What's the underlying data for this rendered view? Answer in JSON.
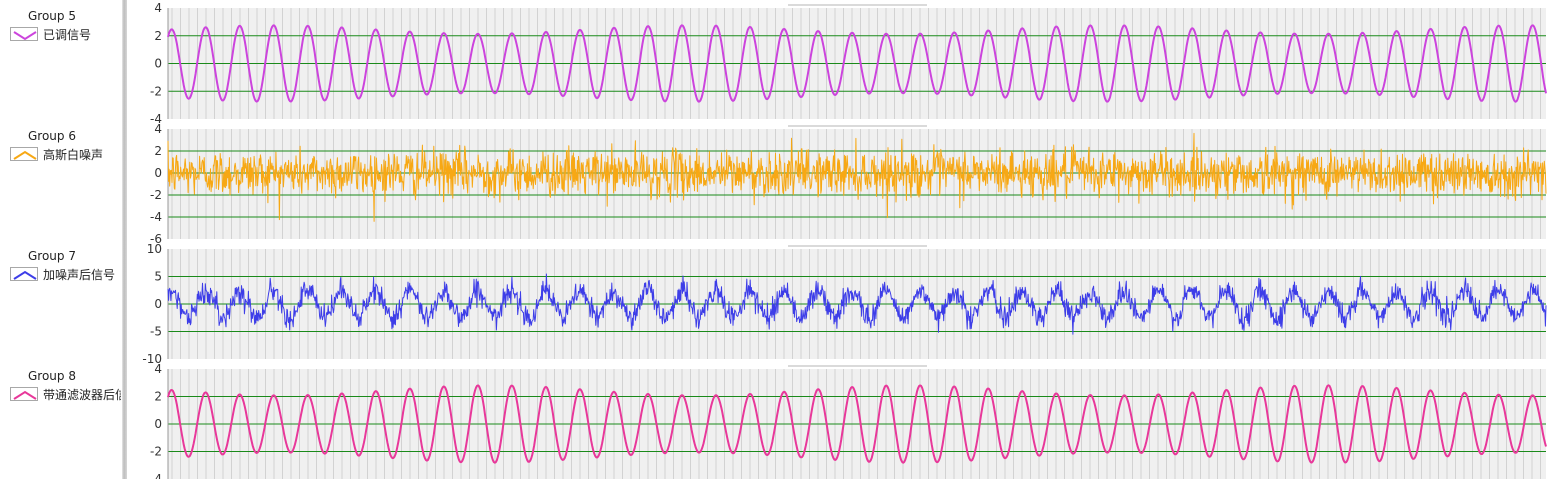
{
  "legend": {
    "groups": [
      {
        "title": "Group 5",
        "name": "已调信号"
      },
      {
        "title": "Group 6",
        "name": "高斯白噪声"
      },
      {
        "title": "Group 7",
        "name": "加噪声后信号"
      },
      {
        "title": "Group 8",
        "name": "带通滤波器后信号"
      }
    ]
  },
  "chart_data": [
    {
      "type": "line",
      "series": [
        {
          "name": "已调信号",
          "color": "#cc44dd"
        }
      ],
      "ylim": [
        -4,
        4
      ],
      "yticks": [
        "4",
        "2",
        "0",
        "-2",
        "-4"
      ],
      "ytick_values": [
        4,
        2,
        0,
        -2,
        -4
      ],
      "signal": {
        "kind": "sine",
        "amplitude": 2.45,
        "cycles": 40.5,
        "noise_std": 0,
        "amplitude_variation": 0.25
      },
      "grid": true,
      "grid_color": "#1a8a1a"
    },
    {
      "type": "line",
      "series": [
        {
          "name": "高斯白噪声",
          "color": "#f7a814"
        }
      ],
      "ylim": [
        -6,
        4
      ],
      "yticks": [
        "4",
        "2",
        "0",
        "-2",
        "-4",
        "-6"
      ],
      "ytick_values": [
        4,
        2,
        0,
        -2,
        -4,
        -6
      ],
      "signal": {
        "kind": "noise",
        "amplitude": 0,
        "cycles": 0,
        "noise_std": 1.05
      },
      "grid": true,
      "grid_color": "#1a8a1a"
    },
    {
      "type": "line",
      "series": [
        {
          "name": "加噪声后信号",
          "color": "#3d3de8"
        }
      ],
      "ylim": [
        -10,
        10
      ],
      "yticks": [
        "10",
        "5",
        "0",
        "-5",
        "-10"
      ],
      "ytick_values": [
        10,
        5,
        0,
        -5,
        -10
      ],
      "signal": {
        "kind": "sine_plus_noise",
        "amplitude": 2.45,
        "cycles": 40.5,
        "noise_std": 1.05
      },
      "grid": true,
      "grid_color": "#1a8a1a"
    },
    {
      "type": "line",
      "series": [
        {
          "name": "带通滤波器后信号",
          "color": "#e8389a"
        }
      ],
      "ylim": [
        -4,
        4
      ],
      "yticks": [
        "4",
        "2",
        "0",
        "-2",
        "-4"
      ],
      "ytick_values": [
        4,
        2,
        0,
        -2,
        -4
      ],
      "signal": {
        "kind": "sine",
        "amplitude": 2.45,
        "cycles": 40.5,
        "noise_std": 0,
        "amplitude_variation": 0.3
      },
      "grid": true,
      "grid_color": "#1a8a1a"
    }
  ]
}
